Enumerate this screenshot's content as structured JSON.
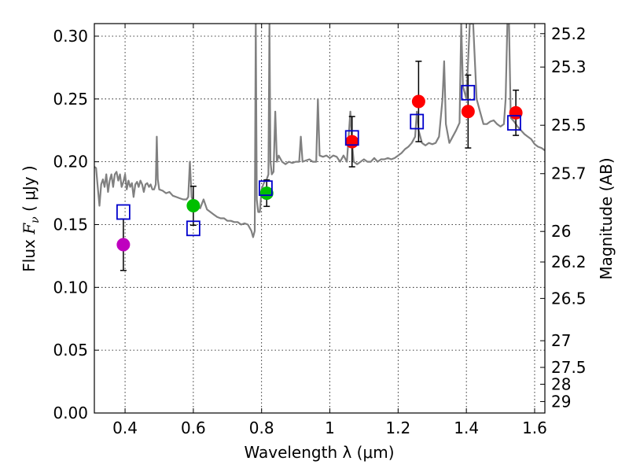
{
  "chart_data": {
    "type": "scatter",
    "xlabel": "Wavelength  λ (μm)",
    "ylabel_text": "Flux ",
    "ylabel_symbol": "F",
    "ylabel_subscript": "ν",
    "ylabel_unit": " ( μJy )",
    "y2label": "Magnitude (AB)",
    "xlim": [
      0.31,
      1.63
    ],
    "ylim": [
      0.0,
      0.31
    ],
    "grid": true,
    "xticks": [
      0.4,
      0.6,
      0.8,
      1.0,
      1.2,
      1.4,
      1.6
    ],
    "xtick_labels": [
      "0.4",
      "0.6",
      "0.8",
      "1",
      "1.2",
      "1.4",
      "1.6"
    ],
    "yticks": [
      0.0,
      0.05,
      0.1,
      0.15,
      0.2,
      0.25,
      0.3
    ],
    "ytick_labels": [
      "0.00",
      "0.05",
      "0.10",
      "0.15",
      "0.20",
      "0.25",
      "0.30"
    ],
    "mag_ticks": [
      {
        "mag": 25.2,
        "label": "25.2"
      },
      {
        "mag": 25.3,
        "label": "25.3"
      },
      {
        "mag": 25.5,
        "label": "25.5"
      },
      {
        "mag": 25.7,
        "label": "25.7"
      },
      {
        "mag": 26.0,
        "label": "26"
      },
      {
        "mag": 26.2,
        "label": "26.2"
      },
      {
        "mag": 26.5,
        "label": "26.5"
      },
      {
        "mag": 27.0,
        "label": "27"
      },
      {
        "mag": 27.5,
        "label": "27.5"
      },
      {
        "mag": 28.0,
        "label": "28"
      },
      {
        "mag": 29.0,
        "label": "29"
      }
    ],
    "observed": [
      {
        "x": 0.395,
        "y": 0.134,
        "err": 0.0205,
        "color": "#bf00bf"
      },
      {
        "x": 0.6,
        "y": 0.165,
        "err": 0.0155,
        "color": "#00bf00"
      },
      {
        "x": 0.815,
        "y": 0.175,
        "err": 0.0105,
        "color": "#00bf00"
      },
      {
        "x": 1.065,
        "y": 0.216,
        "err": 0.02,
        "color": "#ff0000"
      },
      {
        "x": 1.26,
        "y": 0.248,
        "err": 0.032,
        "color": "#ff0000"
      },
      {
        "x": 1.405,
        "y": 0.24,
        "err": 0.029,
        "color": "#ff0000"
      },
      {
        "x": 1.545,
        "y": 0.239,
        "err": 0.018,
        "color": "#ff0000"
      }
    ],
    "model_photometry": [
      {
        "x": 0.395,
        "y": 0.16
      },
      {
        "x": 0.6,
        "y": 0.147
      },
      {
        "x": 0.812,
        "y": 0.179
      },
      {
        "x": 1.065,
        "y": 0.219
      },
      {
        "x": 1.255,
        "y": 0.232
      },
      {
        "x": 1.405,
        "y": 0.255
      },
      {
        "x": 1.54,
        "y": 0.231
      }
    ],
    "model_spectrum": [
      [
        0.31,
        0.196
      ],
      [
        0.315,
        0.195
      ],
      [
        0.32,
        0.18
      ],
      [
        0.325,
        0.165
      ],
      [
        0.33,
        0.182
      ],
      [
        0.335,
        0.186
      ],
      [
        0.34,
        0.18
      ],
      [
        0.345,
        0.19
      ],
      [
        0.35,
        0.176
      ],
      [
        0.355,
        0.185
      ],
      [
        0.36,
        0.19
      ],
      [
        0.365,
        0.18
      ],
      [
        0.37,
        0.19
      ],
      [
        0.375,
        0.192
      ],
      [
        0.38,
        0.185
      ],
      [
        0.385,
        0.19
      ],
      [
        0.39,
        0.18
      ],
      [
        0.395,
        0.184
      ],
      [
        0.4,
        0.19
      ],
      [
        0.405,
        0.178
      ],
      [
        0.41,
        0.185
      ],
      [
        0.415,
        0.18
      ],
      [
        0.42,
        0.183
      ],
      [
        0.425,
        0.172
      ],
      [
        0.43,
        0.182
      ],
      [
        0.435,
        0.184
      ],
      [
        0.44,
        0.18
      ],
      [
        0.445,
        0.185
      ],
      [
        0.45,
        0.182
      ],
      [
        0.455,
        0.176
      ],
      [
        0.46,
        0.182
      ],
      [
        0.465,
        0.183
      ],
      [
        0.47,
        0.18
      ],
      [
        0.475,
        0.182
      ],
      [
        0.48,
        0.178
      ],
      [
        0.485,
        0.178
      ],
      [
        0.49,
        0.182
      ],
      [
        0.493,
        0.22
      ],
      [
        0.496,
        0.186
      ],
      [
        0.5,
        0.178
      ],
      [
        0.51,
        0.177
      ],
      [
        0.52,
        0.175
      ],
      [
        0.53,
        0.176
      ],
      [
        0.54,
        0.173
      ],
      [
        0.55,
        0.172
      ],
      [
        0.56,
        0.171
      ],
      [
        0.57,
        0.17
      ],
      [
        0.58,
        0.17
      ],
      [
        0.585,
        0.172
      ],
      [
        0.59,
        0.2
      ],
      [
        0.595,
        0.172
      ],
      [
        0.6,
        0.168
      ],
      [
        0.61,
        0.165
      ],
      [
        0.62,
        0.163
      ],
      [
        0.63,
        0.17
      ],
      [
        0.64,
        0.162
      ],
      [
        0.65,
        0.16
      ],
      [
        0.66,
        0.158
      ],
      [
        0.67,
        0.156
      ],
      [
        0.68,
        0.155
      ],
      [
        0.69,
        0.155
      ],
      [
        0.7,
        0.153
      ],
      [
        0.71,
        0.153
      ],
      [
        0.72,
        0.152
      ],
      [
        0.73,
        0.152
      ],
      [
        0.74,
        0.15
      ],
      [
        0.75,
        0.151
      ],
      [
        0.76,
        0.15
      ],
      [
        0.77,
        0.145
      ],
      [
        0.775,
        0.14
      ],
      [
        0.78,
        0.145
      ],
      [
        0.783,
        0.31
      ],
      [
        0.786,
        0.17
      ],
      [
        0.79,
        0.16
      ],
      [
        0.795,
        0.16
      ],
      [
        0.8,
        0.178
      ],
      [
        0.805,
        0.182
      ],
      [
        0.81,
        0.185
      ],
      [
        0.815,
        0.186
      ],
      [
        0.82,
        0.19
      ],
      [
        0.823,
        0.31
      ],
      [
        0.826,
        0.2
      ],
      [
        0.83,
        0.19
      ],
      [
        0.835,
        0.192
      ],
      [
        0.84,
        0.24
      ],
      [
        0.845,
        0.2
      ],
      [
        0.85,
        0.205
      ],
      [
        0.86,
        0.2
      ],
      [
        0.87,
        0.198
      ],
      [
        0.88,
        0.2
      ],
      [
        0.89,
        0.199
      ],
      [
        0.9,
        0.2
      ],
      [
        0.91,
        0.2
      ],
      [
        0.915,
        0.22
      ],
      [
        0.92,
        0.2
      ],
      [
        0.93,
        0.201
      ],
      [
        0.94,
        0.202
      ],
      [
        0.95,
        0.2
      ],
      [
        0.96,
        0.2
      ],
      [
        0.965,
        0.25
      ],
      [
        0.97,
        0.205
      ],
      [
        0.98,
        0.204
      ],
      [
        0.99,
        0.205
      ],
      [
        1.0,
        0.203
      ],
      [
        1.01,
        0.205
      ],
      [
        1.02,
        0.204
      ],
      [
        1.03,
        0.2
      ],
      [
        1.04,
        0.205
      ],
      [
        1.05,
        0.2
      ],
      [
        1.055,
        0.22
      ],
      [
        1.06,
        0.24
      ],
      [
        1.065,
        0.215
      ],
      [
        1.07,
        0.2
      ],
      [
        1.08,
        0.198
      ],
      [
        1.09,
        0.2
      ],
      [
        1.1,
        0.202
      ],
      [
        1.11,
        0.2
      ],
      [
        1.12,
        0.2
      ],
      [
        1.13,
        0.203
      ],
      [
        1.14,
        0.2
      ],
      [
        1.15,
        0.202
      ],
      [
        1.16,
        0.202
      ],
      [
        1.17,
        0.203
      ],
      [
        1.18,
        0.202
      ],
      [
        1.19,
        0.203
      ],
      [
        1.2,
        0.205
      ],
      [
        1.21,
        0.207
      ],
      [
        1.22,
        0.21
      ],
      [
        1.23,
        0.212
      ],
      [
        1.24,
        0.215
      ],
      [
        1.25,
        0.22
      ],
      [
        1.255,
        0.24
      ],
      [
        1.26,
        0.225
      ],
      [
        1.27,
        0.215
      ],
      [
        1.28,
        0.213
      ],
      [
        1.29,
        0.215
      ],
      [
        1.3,
        0.214
      ],
      [
        1.31,
        0.215
      ],
      [
        1.32,
        0.22
      ],
      [
        1.33,
        0.25
      ],
      [
        1.335,
        0.28
      ],
      [
        1.34,
        0.23
      ],
      [
        1.35,
        0.215
      ],
      [
        1.36,
        0.22
      ],
      [
        1.37,
        0.225
      ],
      [
        1.38,
        0.231
      ],
      [
        1.385,
        0.31
      ],
      [
        1.39,
        0.26
      ],
      [
        1.4,
        0.25
      ],
      [
        1.41,
        0.31
      ],
      [
        1.42,
        0.31
      ],
      [
        1.43,
        0.25
      ],
      [
        1.44,
        0.24
      ],
      [
        1.45,
        0.23
      ],
      [
        1.46,
        0.23
      ],
      [
        1.47,
        0.232
      ],
      [
        1.48,
        0.233
      ],
      [
        1.49,
        0.23
      ],
      [
        1.5,
        0.228
      ],
      [
        1.51,
        0.23
      ],
      [
        1.515,
        0.25
      ],
      [
        1.52,
        0.31
      ],
      [
        1.525,
        0.31
      ],
      [
        1.53,
        0.235
      ],
      [
        1.54,
        0.232
      ],
      [
        1.55,
        0.228
      ],
      [
        1.56,
        0.225
      ],
      [
        1.57,
        0.222
      ],
      [
        1.58,
        0.22
      ],
      [
        1.59,
        0.218
      ],
      [
        1.6,
        0.214
      ],
      [
        1.61,
        0.212
      ],
      [
        1.62,
        0.211
      ],
      [
        1.63,
        0.209
      ]
    ]
  }
}
